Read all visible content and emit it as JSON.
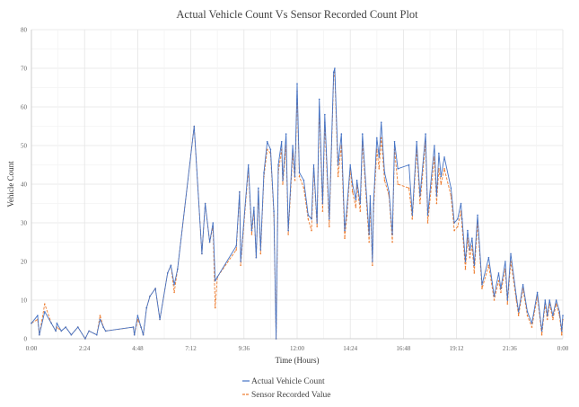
{
  "chart_data": {
    "type": "line",
    "title": "Actual Vehicle Count Vs Sensor Recorded Count Plot",
    "xlabel": "Time (Hours)",
    "ylabel": "Vehicle Count",
    "xlim": [
      0,
      24
    ],
    "ylim": [
      0,
      80
    ],
    "x_tick_labels": [
      "0:00",
      "2:24",
      "4:48",
      "7:12",
      "9:36",
      "12:00",
      "14:24",
      "16:48",
      "19:12",
      "21:36",
      "0:00"
    ],
    "y_tick_labels": [
      "0",
      "10",
      "20",
      "30",
      "40",
      "50",
      "60",
      "70",
      "80"
    ],
    "grid": true,
    "legend_position": "bottom",
    "colors": {
      "actual": "#4472c4",
      "sensor": "#ed7d31",
      "grid": "#e4e4e4",
      "axis": "#cfcfcf"
    },
    "x_hours": [
      0,
      0.28,
      0.36,
      0.6,
      0.9,
      1.1,
      1.15,
      1.35,
      1.55,
      1.8,
      2.1,
      2.43,
      2.6,
      2.95,
      3.1,
      3.25,
      3.35,
      4.6,
      4.65,
      4.8,
      4.95,
      5.05,
      5.2,
      5.35,
      5.6,
      5.8,
      6.15,
      6.3,
      6.45,
      6.6,
      7.35,
      7.7,
      7.85,
      8.05,
      8.2,
      8.3,
      8.4,
      9.25,
      9.4,
      9.45,
      9.8,
      9.95,
      10.05,
      10.15,
      10.25,
      10.35,
      10.5,
      10.65,
      10.8,
      10.95,
      11.05,
      11.15,
      11.3,
      11.35,
      11.5,
      11.6,
      11.8,
      11.9,
      12.0,
      12.1,
      12.3,
      12.5,
      12.65,
      12.75,
      12.9,
      13.0,
      13.15,
      13.25,
      13.45,
      13.65,
      13.7,
      13.85,
      14.0,
      14.15,
      14.25,
      14.4,
      14.5,
      14.65,
      14.7,
      14.85,
      14.95,
      15.25,
      15.3,
      15.4,
      15.45,
      15.6,
      15.7,
      15.8,
      15.95,
      16.15,
      16.3,
      16.4,
      16.55,
      17.05,
      17.2,
      17.4,
      17.55,
      17.8,
      17.9,
      18.2,
      18.3,
      18.4,
      18.5,
      18.65,
      18.95,
      19.1,
      19.25,
      19.4,
      19.45,
      19.6,
      19.7,
      19.8,
      19.9,
      20.0,
      20.15,
      20.35,
      20.65,
      20.9,
      21.1,
      21.2,
      21.4,
      21.5,
      21.65,
      21.9,
      22.0,
      22.2,
      22.4,
      22.6,
      22.85,
      23.05,
      23.2,
      23.3,
      23.4,
      23.55,
      23.7,
      23.85,
      23.95,
      24.0
    ],
    "series": [
      {
        "name": "Actual Vehicle Count",
        "values": [
          4,
          6,
          1,
          7,
          4,
          2,
          4,
          2,
          3,
          1,
          3,
          0,
          2,
          1,
          5,
          3,
          2,
          3,
          1,
          6,
          3,
          1,
          8,
          11,
          13,
          5,
          17,
          19,
          14,
          18,
          55,
          22,
          35,
          25,
          30,
          15,
          16,
          24,
          38,
          20,
          45,
          28,
          34,
          21,
          39,
          23,
          43,
          51,
          49,
          33,
          0,
          45,
          51,
          41,
          53,
          28,
          50,
          42,
          66,
          43,
          41,
          32,
          31,
          45,
          30,
          62,
          35,
          58,
          31,
          69,
          70,
          45,
          53,
          28,
          34,
          45,
          40,
          36,
          41,
          35,
          53,
          27,
          37,
          20,
          35,
          52,
          47,
          56,
          43,
          38,
          27,
          51,
          44,
          45,
          32,
          51,
          37,
          53,
          32,
          50,
          37,
          48,
          42,
          47,
          39,
          30,
          31,
          35,
          31,
          20,
          28,
          23,
          26,
          19,
          32,
          14,
          21,
          11,
          17,
          13,
          20,
          10,
          22,
          11,
          7,
          14,
          7,
          4,
          12,
          2,
          10,
          6,
          10,
          6,
          10,
          7,
          2,
          6
        ]
      },
      {
        "name": "Sensor Recorded Value",
        "values": [
          4,
          5,
          1,
          9,
          4,
          2,
          3,
          2,
          3,
          1,
          3,
          0,
          2,
          1,
          6,
          3,
          2,
          3,
          1,
          5,
          3,
          1,
          8,
          11,
          13,
          5,
          17,
          19,
          12,
          18,
          55,
          22,
          35,
          25,
          29,
          8,
          16,
          23,
          38,
          19,
          44,
          27,
          33,
          21,
          38,
          22,
          42,
          49,
          48,
          32,
          0,
          43,
          49,
          40,
          50,
          27,
          48,
          41,
          64,
          42,
          39,
          31,
          28,
          44,
          29,
          60,
          33,
          56,
          29,
          68,
          69,
          42,
          50,
          26,
          32,
          44,
          38,
          34,
          40,
          33,
          51,
          25,
          35,
          19,
          33,
          49,
          44,
          52,
          41,
          37,
          25,
          49,
          40,
          39,
          31,
          49,
          35,
          51,
          30,
          47,
          35,
          44,
          40,
          44,
          37,
          28,
          29,
          33,
          29,
          18,
          26,
          21,
          24,
          17,
          30,
          13,
          19,
          10,
          15,
          12,
          18,
          9,
          20,
          10,
          6,
          13,
          6,
          3,
          11,
          1,
          9,
          5,
          9,
          5,
          9,
          6,
          1,
          5
        ]
      }
    ]
  }
}
